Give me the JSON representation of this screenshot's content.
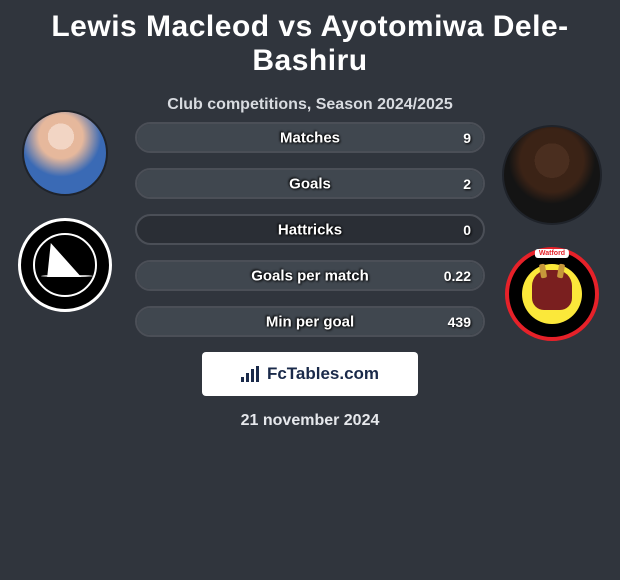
{
  "colors": {
    "background": "#30353d",
    "bar_border": "#4b4f57",
    "bar_bg": "#2a2e35",
    "left_fill": "#2f7f35",
    "right_fill": "#40474f",
    "text": "#ffffff"
  },
  "title": "Lewis Macleod vs Ayotomiwa Dele-Bashiru",
  "subtitle": "Club competitions, Season 2024/2025",
  "date": "21 november 2024",
  "brand": "FcTables.com",
  "player_left": {
    "name": "Lewis Macleod",
    "club": "Plymouth"
  },
  "player_right": {
    "name": "Ayotomiwa Dele-Bashiru",
    "club": "Watford"
  },
  "stats": [
    {
      "label": "Matches",
      "left_value": "",
      "right_value": "9",
      "left_pct": 0,
      "right_pct": 100,
      "left_color": "#40474f",
      "right_color": "#40474f"
    },
    {
      "label": "Goals",
      "left_value": "",
      "right_value": "2",
      "left_pct": 0,
      "right_pct": 100,
      "left_color": "#40474f",
      "right_color": "#40474f"
    },
    {
      "label": "Hattricks",
      "left_value": "",
      "right_value": "0",
      "left_pct": 0,
      "right_pct": 0,
      "left_color": "#40474f",
      "right_color": "#40474f"
    },
    {
      "label": "Goals per match",
      "left_value": "",
      "right_value": "0.22",
      "left_pct": 0,
      "right_pct": 100,
      "left_color": "#40474f",
      "right_color": "#40474f"
    },
    {
      "label": "Min per goal",
      "left_value": "",
      "right_value": "439",
      "left_pct": 0,
      "right_pct": 100,
      "left_color": "#40474f",
      "right_color": "#40474f"
    }
  ]
}
